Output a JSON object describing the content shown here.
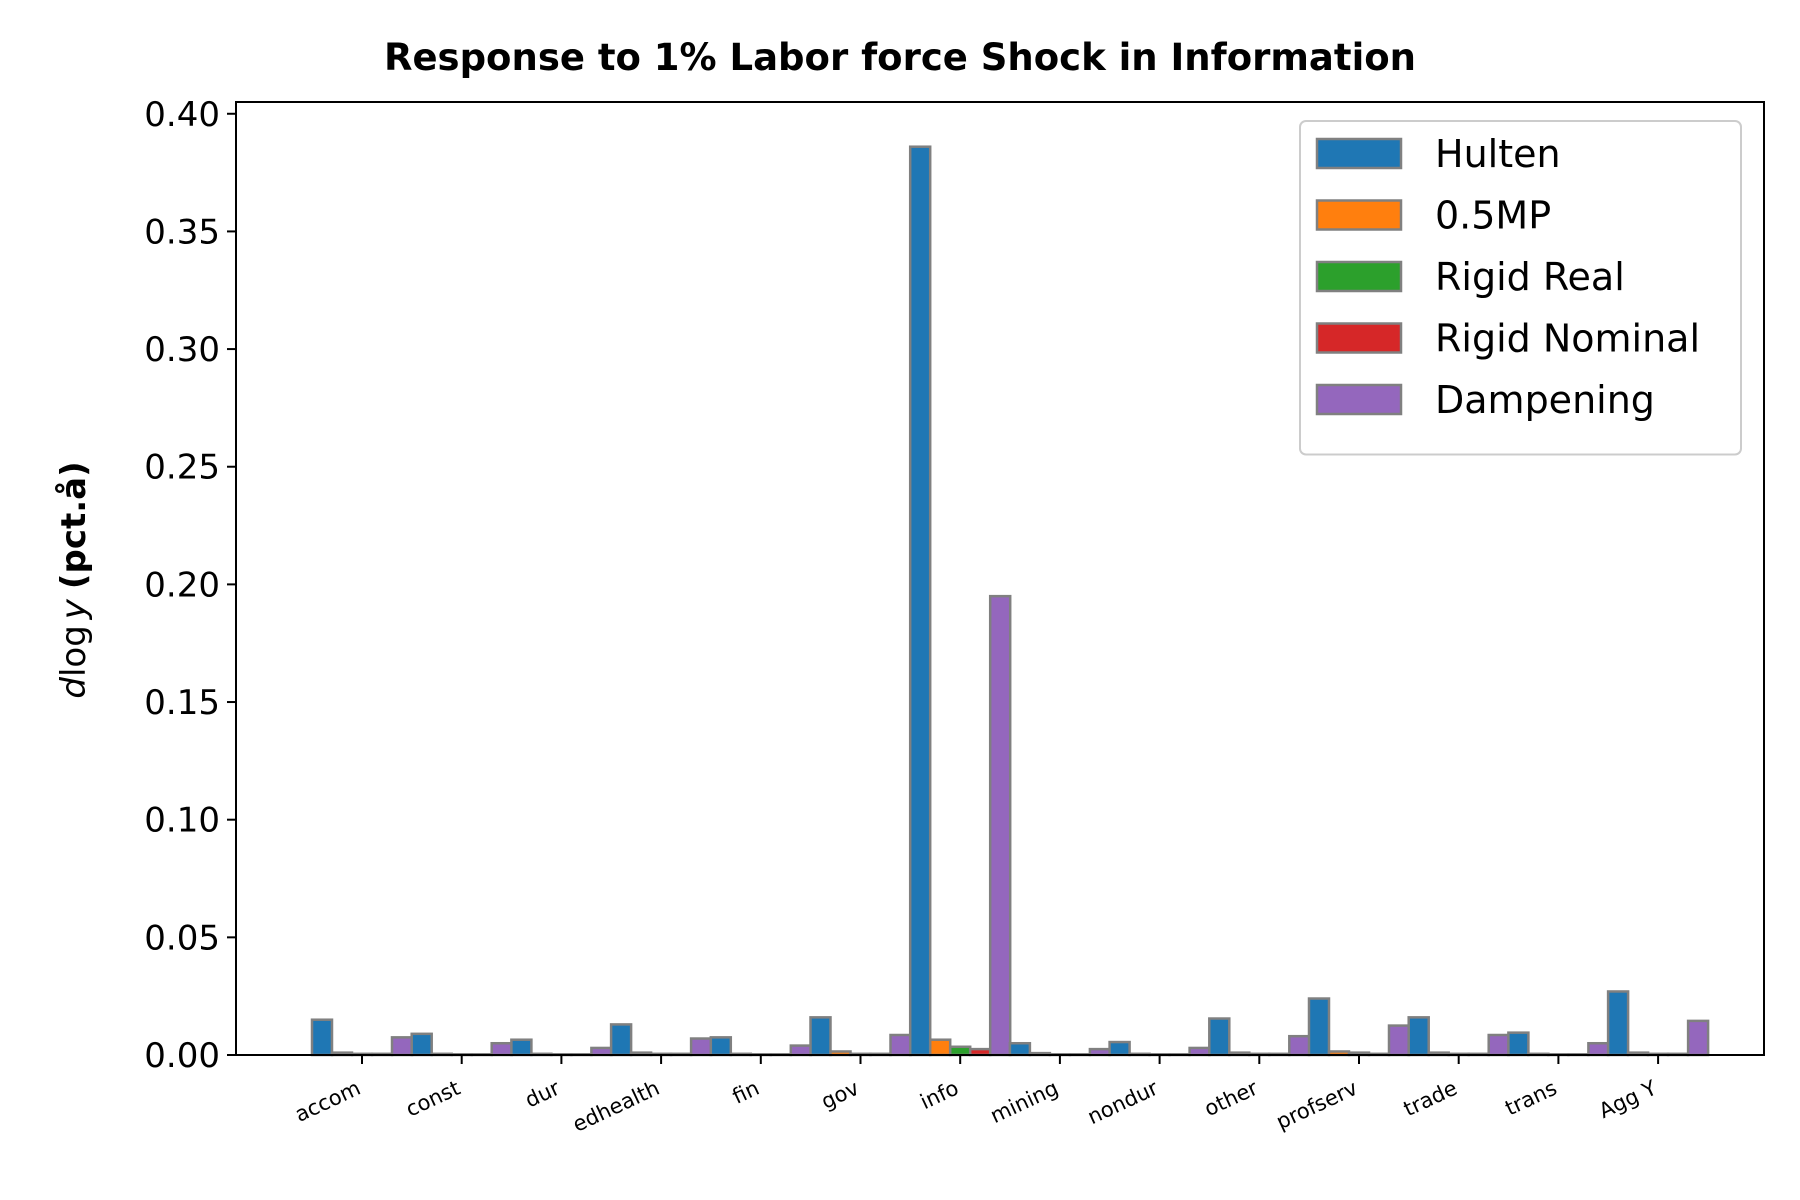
{
  "chart_data": {
    "type": "bar",
    "title": "Response to 1% Labor force Shock in Information",
    "ylabel": {
      "var_d": "d",
      "var_log": "log",
      "var_y": "y",
      "unit": "(pct.å)"
    },
    "xlabel": "",
    "ylim": [
      0,
      0.405
    ],
    "yticks": [
      "0.00",
      "0.05",
      "0.10",
      "0.15",
      "0.20",
      "0.25",
      "0.30",
      "0.35",
      "0.40"
    ],
    "ytick_values": [
      0,
      0.05,
      0.1,
      0.15,
      0.2,
      0.25,
      0.3,
      0.35,
      0.4
    ],
    "categories": [
      "accom",
      "const",
      "dur",
      "edhealth",
      "fin",
      "gov",
      "info",
      "mining",
      "nondur",
      "other",
      "profserv",
      "trade",
      "trans",
      "Agg Y"
    ],
    "series": [
      {
        "name": "Hulten",
        "color": "#1f77b4",
        "values": [
          0.015,
          0.009,
          0.0065,
          0.013,
          0.0075,
          0.016,
          0.386,
          0.005,
          0.0055,
          0.0155,
          0.024,
          0.016,
          0.0095,
          0.027
        ]
      },
      {
        "name": "0.5MP",
        "color": "#ff7f0e",
        "values": [
          0.001,
          0.0005,
          0.0005,
          0.001,
          0.0005,
          0.0015,
          0.0065,
          0.0008,
          0.0005,
          0.001,
          0.0015,
          0.001,
          0.0005,
          0.001
        ]
      },
      {
        "name": "Rigid Real",
        "color": "#2ca02c",
        "values": [
          0.0005,
          0.0003,
          0.0003,
          0.0005,
          0.0003,
          0.0005,
          0.0035,
          0.0003,
          0.0003,
          0.0005,
          0.001,
          0.0005,
          0.0003,
          0.0005
        ]
      },
      {
        "name": "Rigid Nominal",
        "color": "#d62728",
        "values": [
          0.0005,
          0.0003,
          0.0003,
          0.0005,
          0.0003,
          0.0005,
          0.0025,
          0.0003,
          0.0003,
          0.0005,
          0.0005,
          0.0005,
          0.0003,
          0.0005
        ]
      },
      {
        "name": "Dampening",
        "color": "#9467bd",
        "values": [
          0.0075,
          0.005,
          0.003,
          0.007,
          0.004,
          0.0085,
          0.195,
          0.0025,
          0.003,
          0.008,
          0.0125,
          0.0085,
          0.005,
          0.0145
        ]
      }
    ],
    "legend_position": "top-right",
    "grid": false,
    "bar_edge_color": "#808080"
  }
}
